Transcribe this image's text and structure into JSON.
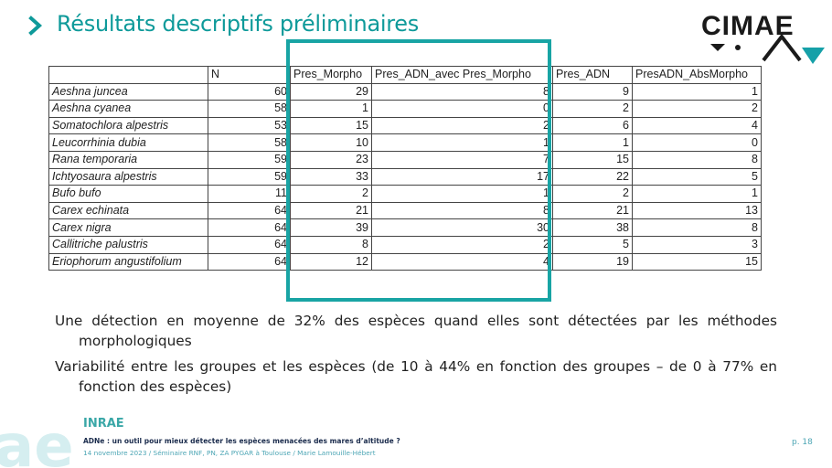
{
  "slide": {
    "title": "Résultats descriptifs préliminaires",
    "logo_text": "CIMAE",
    "accent_color": "#0e9a9a",
    "highlight_color": "#18a4a4"
  },
  "table": {
    "headers": [
      "",
      "N",
      "Pres_Morpho",
      "Pres_ADN_avec Pres_Morpho",
      "Pres_ADN",
      "PresADN_AbsMorpho"
    ],
    "rows": [
      [
        "Aeshna juncea",
        "60",
        "29",
        "8",
        "9",
        "1"
      ],
      [
        "Aeshna cyanea",
        "58",
        "1",
        "0",
        "2",
        "2"
      ],
      [
        "Somatochlora alpestris",
        "53",
        "15",
        "2",
        "6",
        "4"
      ],
      [
        "Leucorrhinia dubia",
        "58",
        "10",
        "1",
        "1",
        "0"
      ],
      [
        "Rana temporaria",
        "59",
        "23",
        "7",
        "15",
        "8"
      ],
      [
        "Ichtyosaura alpestris",
        "59",
        "33",
        "17",
        "22",
        "5"
      ],
      [
        "Bufo bufo",
        "11",
        "2",
        "1",
        "2",
        "1"
      ],
      [
        "Carex echinata",
        "64",
        "21",
        "8",
        "21",
        "13"
      ],
      [
        "Carex nigra",
        "64",
        "39",
        "30",
        "38",
        "8"
      ],
      [
        "Callitriche palustris",
        "64",
        "8",
        "2",
        "5",
        "3"
      ],
      [
        "Eriophorum angustifolium",
        "64",
        "12",
        "4",
        "19",
        "15"
      ]
    ]
  },
  "bullets": [
    "Une détection en moyenne de 32% des espèces quand elles sont détectées par les méthodes morphologiques",
    "Variabilité entre les groupes et les espèces (de 10 à 44% en fonction des groupes – de 0 à 77% en fonction des espèces)"
  ],
  "footer": {
    "brand": "INRAE",
    "title": "ADNe : un outil pour mieux détecter les espèces menacées des mares d’altitude ?",
    "subtitle": "14 novembre 2023 / Séminaire RNF, PN, ZA PYGAR à Toulouse / Marie Lamouille-Hébert",
    "page": "p. 18"
  }
}
